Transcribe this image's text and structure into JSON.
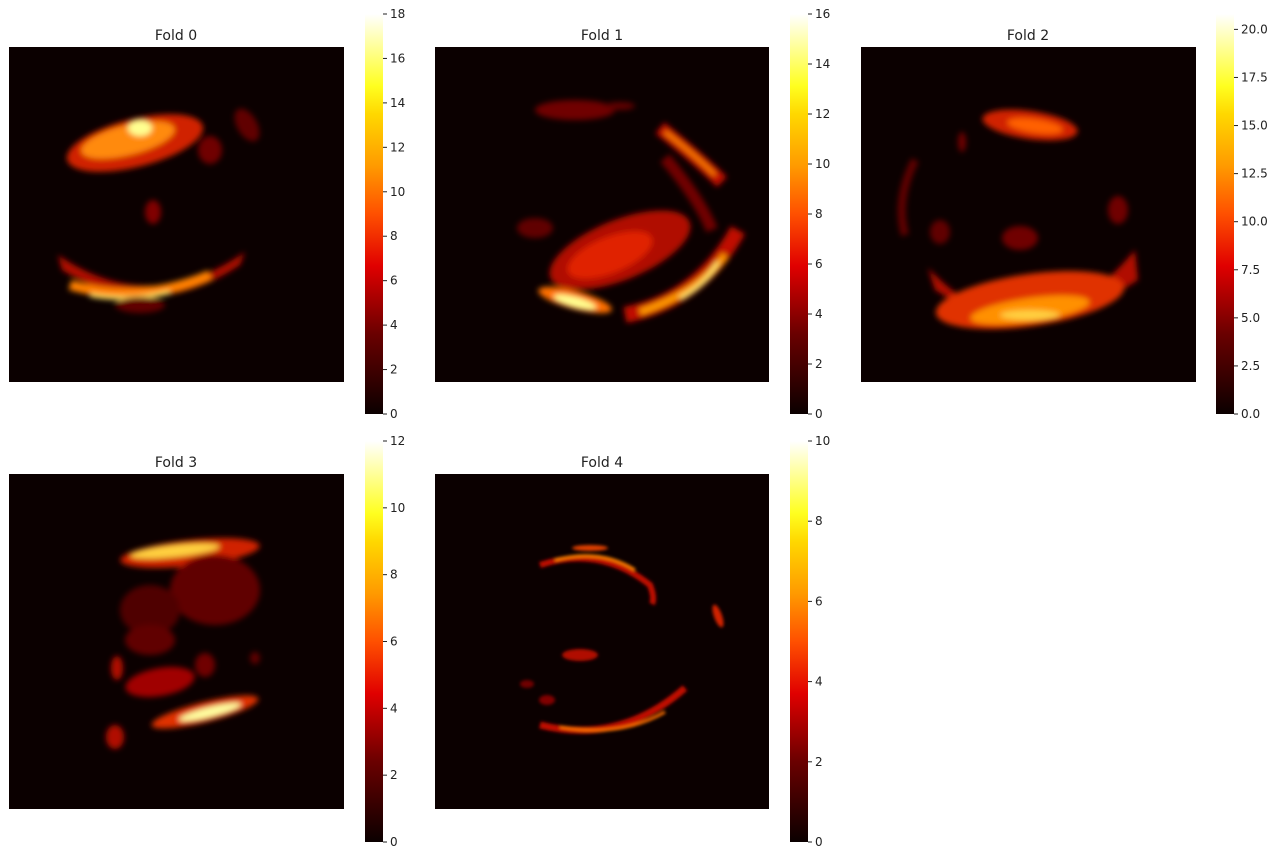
{
  "chart_data": [
    {
      "type": "heatmap",
      "title": "Fold 0",
      "colormap": "hot",
      "vmin": 0,
      "vmax": 18,
      "colorbar_ticks": [
        "0",
        "2",
        "4",
        "6",
        "8",
        "10",
        "12",
        "14",
        "16",
        "18"
      ]
    },
    {
      "type": "heatmap",
      "title": "Fold 1",
      "colormap": "hot",
      "vmin": 0,
      "vmax": 16,
      "colorbar_ticks": [
        "0",
        "2",
        "4",
        "6",
        "8",
        "10",
        "12",
        "14",
        "16"
      ]
    },
    {
      "type": "heatmap",
      "title": "Fold 2",
      "colormap": "hot",
      "vmin": 0,
      "vmax": 20.8,
      "colorbar_ticks": [
        "0.0",
        "2.5",
        "5.0",
        "7.5",
        "10.0",
        "12.5",
        "15.0",
        "17.5",
        "20.0"
      ]
    },
    {
      "type": "heatmap",
      "title": "Fold 3",
      "colormap": "hot",
      "vmin": 0,
      "vmax": 12,
      "colorbar_ticks": [
        "0",
        "2",
        "4",
        "6",
        "8",
        "10",
        "12"
      ]
    },
    {
      "type": "heatmap",
      "title": "Fold 4",
      "colormap": "hot",
      "vmin": 0,
      "vmax": 10,
      "colorbar_ticks": [
        "0",
        "2",
        "4",
        "6",
        "8",
        "10"
      ]
    }
  ]
}
